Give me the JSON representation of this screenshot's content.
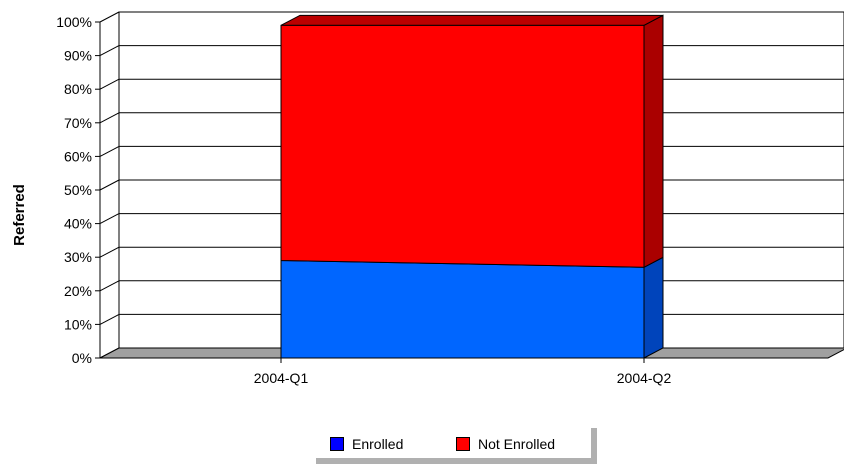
{
  "chart_data": {
    "type": "area",
    "stacked": true,
    "three_d": true,
    "percent_stacked": true,
    "categories": [
      "2004-Q1",
      "2004-Q2"
    ],
    "series": [
      {
        "name": "Enrolled",
        "values": [
          29,
          27
        ],
        "color": "#0066ff"
      },
      {
        "name": "Not Enrolled",
        "values": [
          70,
          72
        ],
        "color": "#ff0000"
      }
    ],
    "ylabel": "Referred",
    "xlabel": "",
    "y_ticks": [
      "0%",
      "10%",
      "20%",
      "30%",
      "40%",
      "50%",
      "60%",
      "70%",
      "80%",
      "90%",
      "100%"
    ],
    "ylim": [
      0,
      100
    ],
    "grid": true,
    "legend_position": "bottom"
  },
  "legend": {
    "items": [
      {
        "label": "Enrolled",
        "color": "#0000ff"
      },
      {
        "label": "Not Enrolled",
        "color": "#ff0000"
      }
    ]
  }
}
